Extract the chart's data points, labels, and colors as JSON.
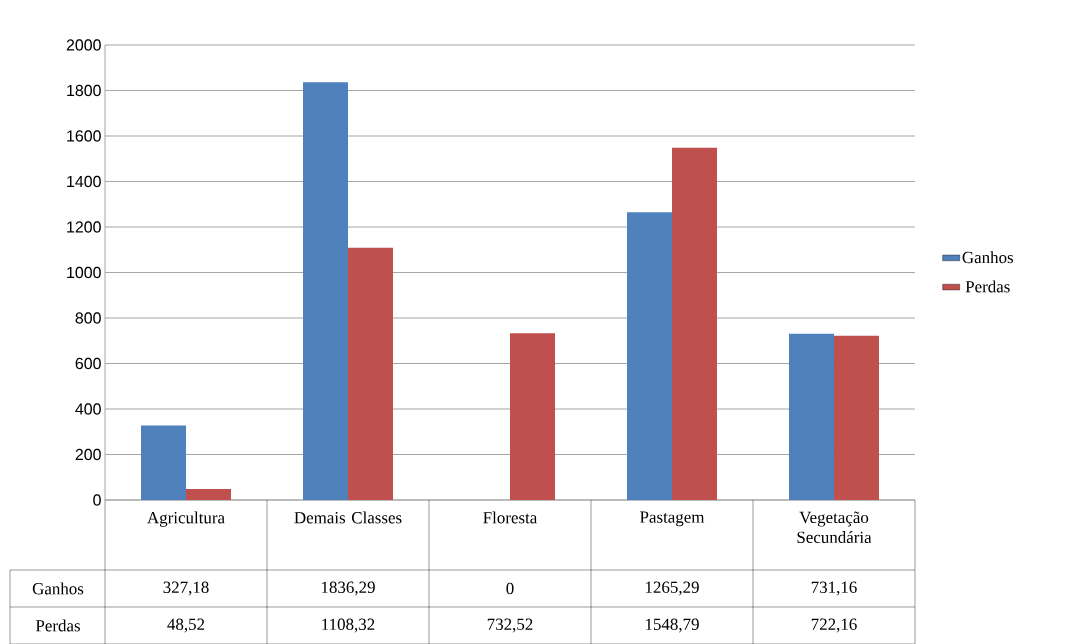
{
  "chart_data": {
    "type": "bar",
    "categories": [
      "Agricultura",
      "Demais Classes",
      "Floresta",
      "Pastagem",
      "Vegetação Secundária"
    ],
    "series": [
      {
        "name": "Ganhos",
        "color": "#4f81bd",
        "values": [
          327.18,
          1836.29,
          0,
          1265.29,
          731.16
        ],
        "value_labels": [
          "327,18",
          "1836,29",
          "0",
          "1265,29",
          "731,16"
        ]
      },
      {
        "name": "Perdas",
        "color": "#c0504d",
        "values": [
          48.52,
          1108.32,
          732.52,
          1548.79,
          722.16
        ],
        "value_labels": [
          "48,52",
          "1108,32",
          "732,52",
          "1548,79",
          "722,16"
        ]
      }
    ],
    "ylim": [
      0,
      2000
    ],
    "yticks": [
      0,
      200,
      400,
      600,
      800,
      1000,
      1200,
      1400,
      1600,
      1800,
      2000
    ],
    "grid": "y",
    "legend": "right"
  }
}
